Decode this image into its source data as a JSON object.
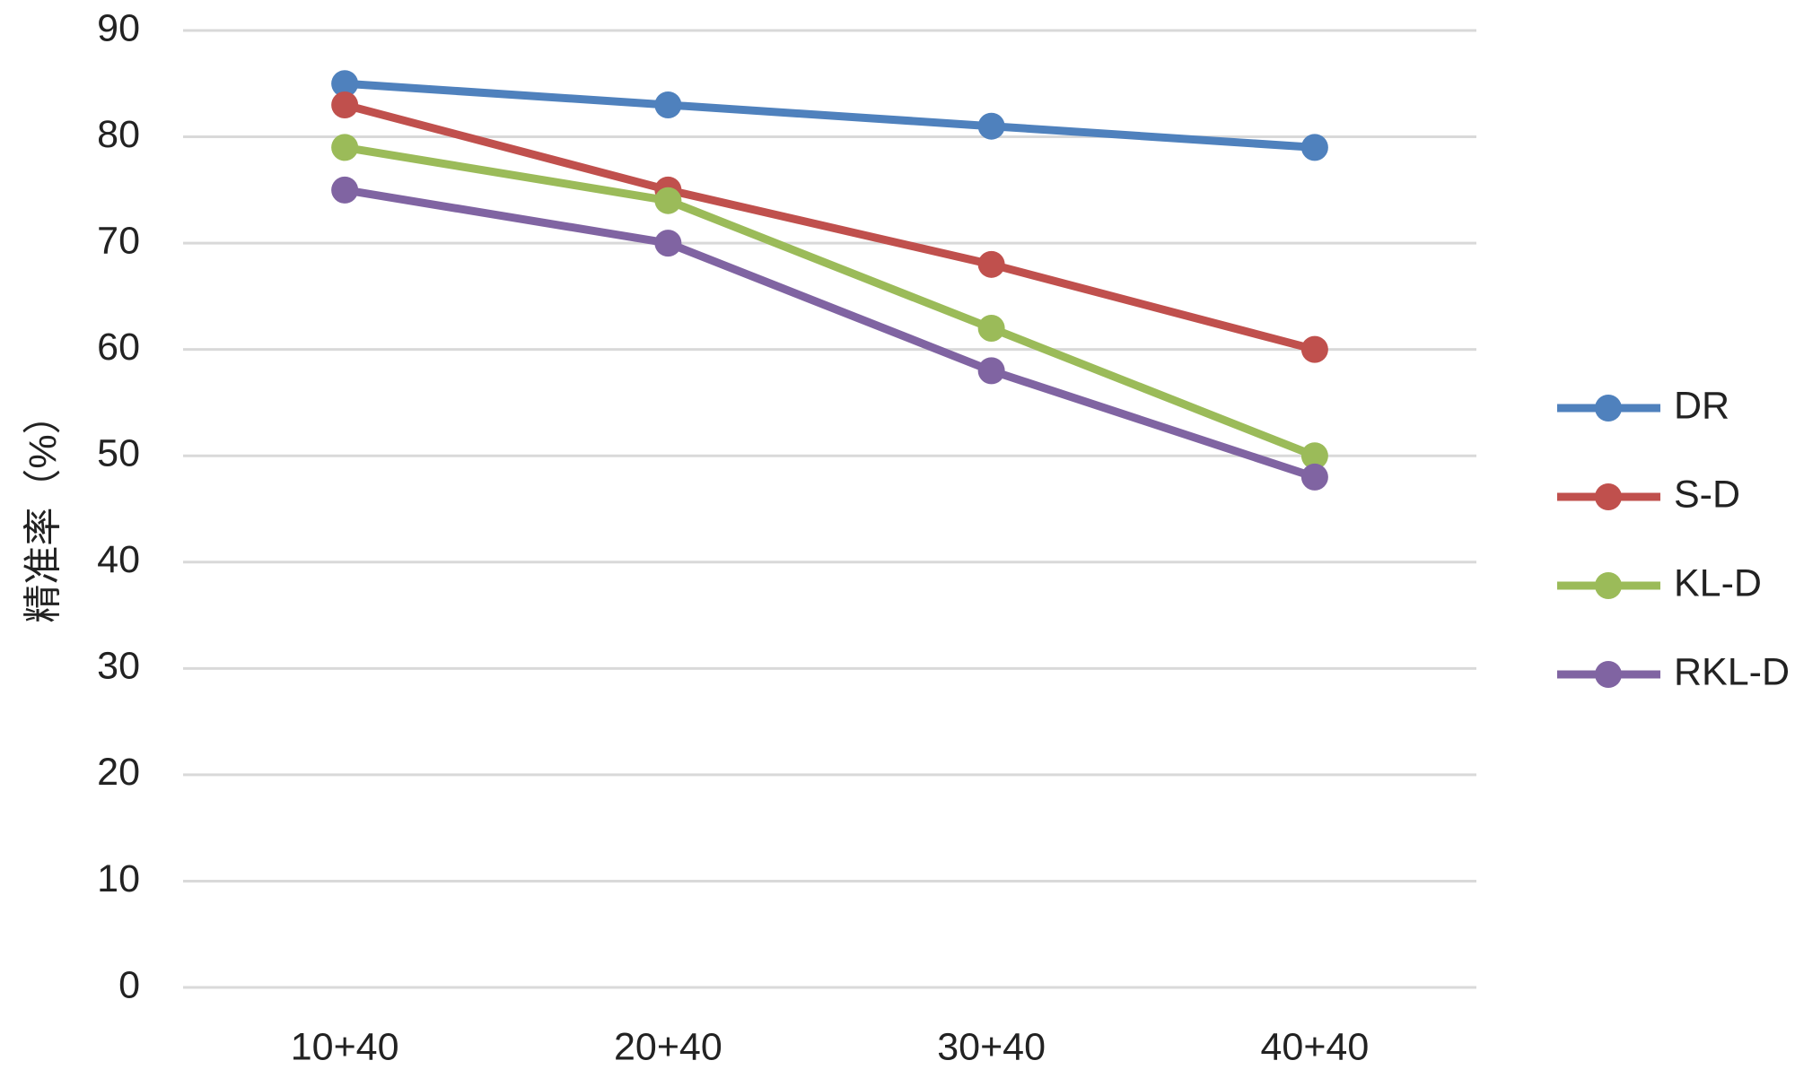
{
  "chart_data": {
    "type": "line",
    "y_label": "精准率（%）",
    "categories": [
      "10+40",
      "20+40",
      "30+40",
      "40+40"
    ],
    "series": [
      {
        "name": "DR",
        "color": "#4f81bd",
        "values": [
          85,
          83,
          81,
          79
        ]
      },
      {
        "name": "S-D",
        "color": "#c0504d",
        "values": [
          83,
          75,
          68,
          60
        ]
      },
      {
        "name": "KL-D",
        "color": "#9bbb59",
        "values": [
          79,
          74,
          62,
          50
        ]
      },
      {
        "name": "RKL-D",
        "color": "#8064a2",
        "values": [
          75,
          70,
          58,
          48
        ]
      }
    ],
    "ylim": [
      0,
      90
    ],
    "yticks": [
      0,
      10,
      20,
      30,
      40,
      50,
      60,
      70,
      80,
      90
    ],
    "grid": true,
    "legend": "right"
  }
}
